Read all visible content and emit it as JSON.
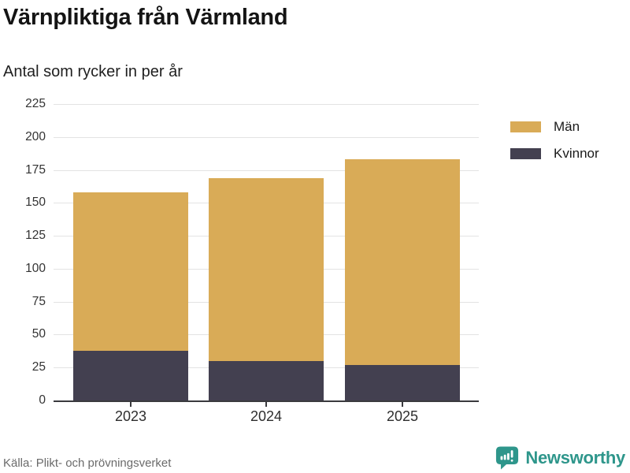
{
  "header": {
    "title": "Värnpliktiga från Värmland",
    "subtitle": "Antal som rycker in per år"
  },
  "chart_data": {
    "type": "bar",
    "stacked": true,
    "title": "Värnpliktiga från Värmland",
    "subtitle": "Antal som rycker in per år",
    "categories": [
      "2023",
      "2024",
      "2025"
    ],
    "series": [
      {
        "name": "Män",
        "color": "#d9ab57",
        "values": [
          120,
          139,
          156
        ]
      },
      {
        "name": "Kvinnor",
        "color": "#434050",
        "values": [
          38,
          30,
          27
        ]
      }
    ],
    "stack_order_bottom_to_top": [
      "Kvinnor",
      "Män"
    ],
    "xlabel": "",
    "ylabel": "",
    "ylim": [
      0,
      225
    ],
    "ytick_step": 25,
    "grid": "horizontal",
    "gridline_color": "#e3e3e3",
    "axis_color": "#3a3a3e",
    "legend_position": "right"
  },
  "footer": {
    "source": "Källa: Plikt- och prövningsverket",
    "brand": "Newsworthy",
    "brand_color": "#2e968b"
  }
}
